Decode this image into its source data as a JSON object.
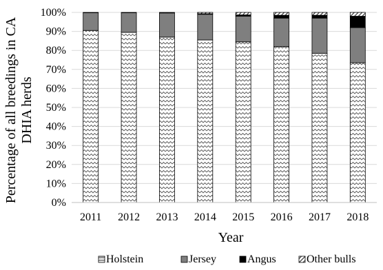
{
  "chart_data": {
    "type": "bar",
    "stacked": true,
    "categories": [
      "2011",
      "2012",
      "2013",
      "2014",
      "2015",
      "2016",
      "2017",
      "2018"
    ],
    "series": [
      {
        "name": "Holstein",
        "values": [
          90.5,
          89.5,
          87.0,
          85.5,
          84.5,
          82.0,
          78.5,
          73.5
        ],
        "pattern": "zigzag"
      },
      {
        "name": "Jersey",
        "values": [
          9.3,
          10.3,
          12.7,
          13.5,
          13.5,
          15.0,
          18.5,
          18.5
        ],
        "pattern": "solid-gray"
      },
      {
        "name": "Angus",
        "values": [
          0.0,
          0.0,
          0.0,
          0.3,
          0.7,
          1.5,
          1.5,
          6.0
        ],
        "pattern": "solid-black"
      },
      {
        "name": "Other bulls",
        "values": [
          0.2,
          0.2,
          0.3,
          0.7,
          1.3,
          1.5,
          1.5,
          2.0
        ],
        "pattern": "diagonal-hatch"
      }
    ],
    "yticks": [
      "0%",
      "10%",
      "20%",
      "30%",
      "40%",
      "50%",
      "60%",
      "70%",
      "80%",
      "90%",
      "100%"
    ],
    "ylim": [
      0,
      100
    ],
    "xlabel": "Year",
    "ylabel_lines": [
      "Percentage of all breedings in CA",
      "DHIA herds"
    ],
    "grid": true,
    "legend_position": "bottom",
    "colors": {
      "jersey": "#7f7f7f",
      "angus": "#000000",
      "grid": "#d9d9d9",
      "axis": "#bfbfbf"
    }
  }
}
